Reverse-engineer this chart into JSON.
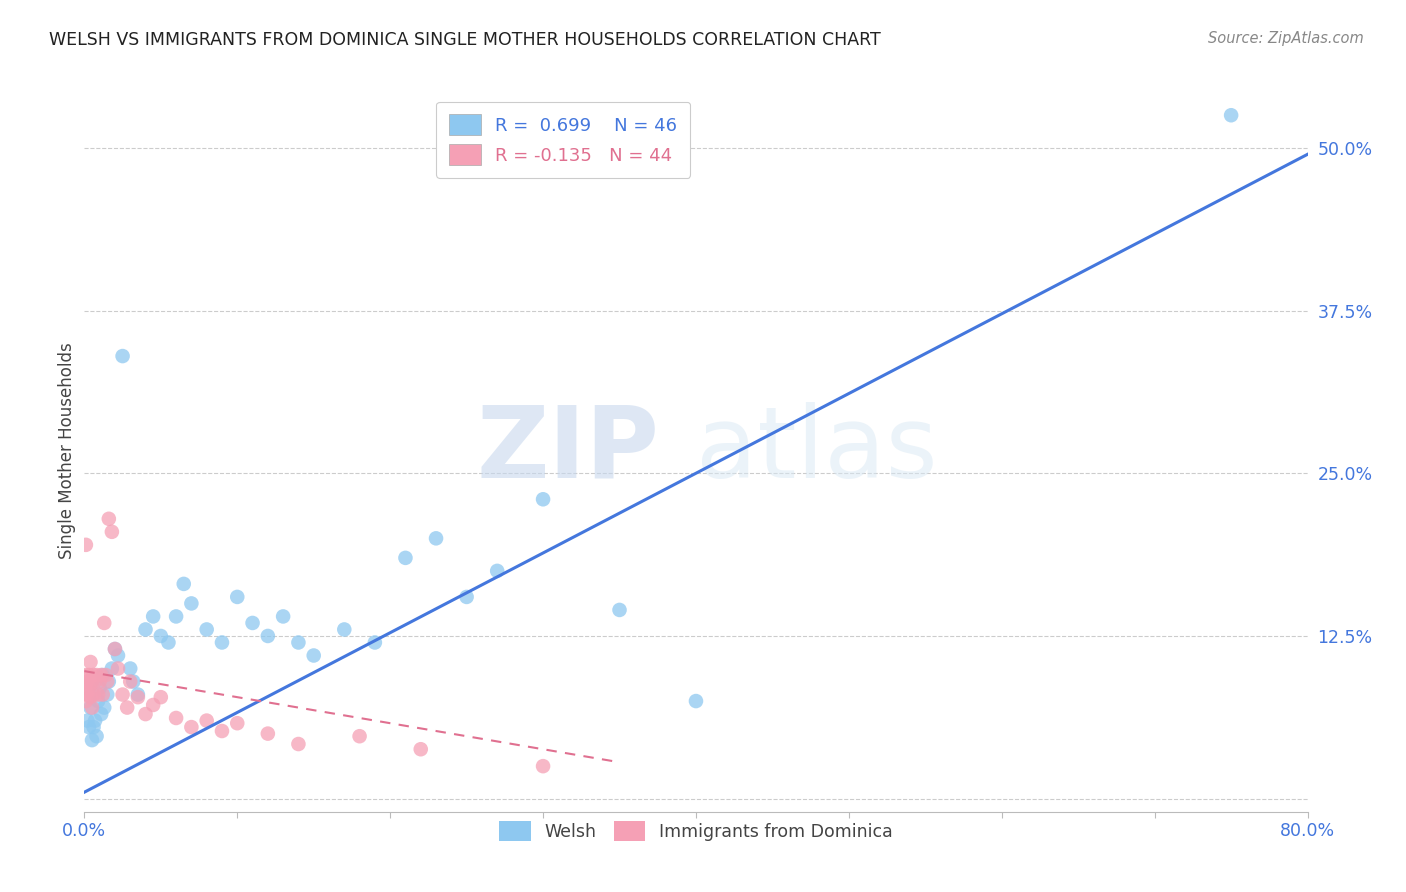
{
  "title": "WELSH VS IMMIGRANTS FROM DOMINICA SINGLE MOTHER HOUSEHOLDS CORRELATION CHART",
  "source": "Source: ZipAtlas.com",
  "ylabel": "Single Mother Households",
  "xlim": [
    0.0,
    0.8
  ],
  "ylim": [
    -0.01,
    0.545
  ],
  "yticks": [
    0.0,
    0.125,
    0.25,
    0.375,
    0.5
  ],
  "ytick_labels": [
    "",
    "12.5%",
    "25.0%",
    "37.5%",
    "50.0%"
  ],
  "xticks": [
    0.0,
    0.1,
    0.2,
    0.3,
    0.4,
    0.5,
    0.6,
    0.7,
    0.8
  ],
  "xtick_labels": [
    "0.0%",
    "",
    "",
    "",
    "",
    "",
    "",
    "",
    "80.0%"
  ],
  "grid_color": "#cccccc",
  "background_color": "#ffffff",
  "welsh_color": "#8EC8F0",
  "dominica_color": "#F5A0B5",
  "welsh_line_color": "#4477DD",
  "dominica_line_color": "#E07090",
  "legend_welsh_R": "0.699",
  "legend_welsh_N": "46",
  "legend_dominica_R": "-0.135",
  "legend_dominica_N": "44",
  "watermark_zip": "ZIP",
  "watermark_atlas": "atlas",
  "welsh_scatter_x": [
    0.002,
    0.003,
    0.004,
    0.005,
    0.006,
    0.007,
    0.008,
    0.009,
    0.01,
    0.011,
    0.012,
    0.013,
    0.015,
    0.016,
    0.018,
    0.02,
    0.022,
    0.025,
    0.03,
    0.032,
    0.035,
    0.04,
    0.045,
    0.05,
    0.055,
    0.06,
    0.065,
    0.07,
    0.08,
    0.09,
    0.1,
    0.11,
    0.12,
    0.13,
    0.14,
    0.15,
    0.17,
    0.19,
    0.21,
    0.23,
    0.25,
    0.27,
    0.3,
    0.35,
    0.4,
    0.75
  ],
  "welsh_scatter_y": [
    0.06,
    0.055,
    0.07,
    0.045,
    0.055,
    0.06,
    0.048,
    0.075,
    0.085,
    0.065,
    0.095,
    0.07,
    0.08,
    0.09,
    0.1,
    0.115,
    0.11,
    0.34,
    0.1,
    0.09,
    0.08,
    0.13,
    0.14,
    0.125,
    0.12,
    0.14,
    0.165,
    0.15,
    0.13,
    0.12,
    0.155,
    0.135,
    0.125,
    0.14,
    0.12,
    0.11,
    0.13,
    0.12,
    0.185,
    0.2,
    0.155,
    0.175,
    0.23,
    0.145,
    0.075,
    0.525
  ],
  "dominica_scatter_x": [
    0.001,
    0.001,
    0.001,
    0.002,
    0.002,
    0.003,
    0.003,
    0.004,
    0.004,
    0.005,
    0.005,
    0.006,
    0.006,
    0.007,
    0.008,
    0.009,
    0.01,
    0.011,
    0.012,
    0.013,
    0.014,
    0.015,
    0.016,
    0.018,
    0.02,
    0.022,
    0.025,
    0.028,
    0.03,
    0.035,
    0.04,
    0.045,
    0.05,
    0.06,
    0.07,
    0.08,
    0.09,
    0.1,
    0.12,
    0.14,
    0.18,
    0.22,
    0.3,
    0.001
  ],
  "dominica_scatter_y": [
    0.095,
    0.085,
    0.075,
    0.09,
    0.08,
    0.095,
    0.085,
    0.105,
    0.078,
    0.09,
    0.07,
    0.095,
    0.08,
    0.09,
    0.095,
    0.08,
    0.09,
    0.095,
    0.08,
    0.135,
    0.095,
    0.09,
    0.215,
    0.205,
    0.115,
    0.1,
    0.08,
    0.07,
    0.09,
    0.078,
    0.065,
    0.072,
    0.078,
    0.062,
    0.055,
    0.06,
    0.052,
    0.058,
    0.05,
    0.042,
    0.048,
    0.038,
    0.025,
    0.195
  ],
  "welsh_line_x": [
    0.0,
    0.8
  ],
  "welsh_line_y": [
    0.005,
    0.495
  ],
  "dominica_line_x": [
    0.0,
    0.35
  ],
  "dominica_line_y": [
    0.098,
    0.028
  ]
}
